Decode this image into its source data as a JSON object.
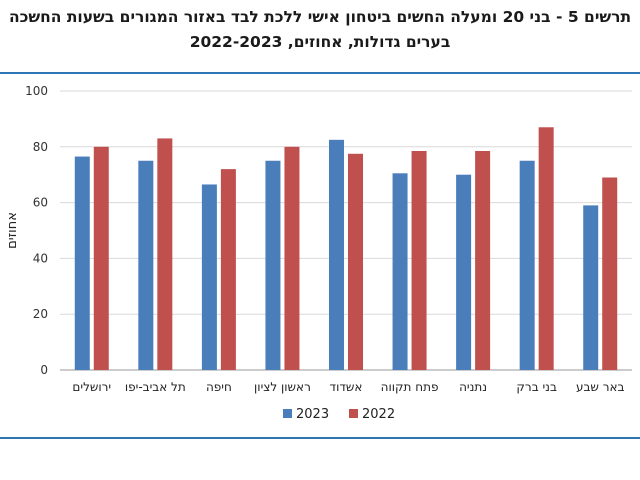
{
  "title": {
    "line1": "תרשים 5 - בני 20 ומעלה החשים ביטחון אישי ללכת לבד באזור המגורים בשעות החשכה",
    "line2": "בערים גדולות, אחוזים, 2022-2023"
  },
  "chart_data": {
    "type": "bar",
    "categories": [
      "ירושלים",
      "תל אביב-יפו",
      "חיפה",
      "ראשון לציון",
      "אשדוד",
      "פתח תקווה",
      "נתניה",
      "בני ברק",
      "באר שבע"
    ],
    "series": [
      {
        "name": "2023",
        "color": "#4a7ebb",
        "values": [
          76.5,
          75,
          66.5,
          75,
          82.5,
          70.5,
          70,
          75,
          59
        ]
      },
      {
        "name": "2022",
        "color": "#c0504d",
        "values": [
          80,
          83,
          72,
          80,
          77.5,
          78.5,
          78.5,
          87,
          69
        ]
      }
    ],
    "ylabel": "אחוזים",
    "xlabel": "",
    "ylim": [
      0,
      100
    ],
    "yticks": [
      0,
      20,
      40,
      60,
      80,
      100
    ],
    "grid": true,
    "legend_position": "bottom"
  }
}
